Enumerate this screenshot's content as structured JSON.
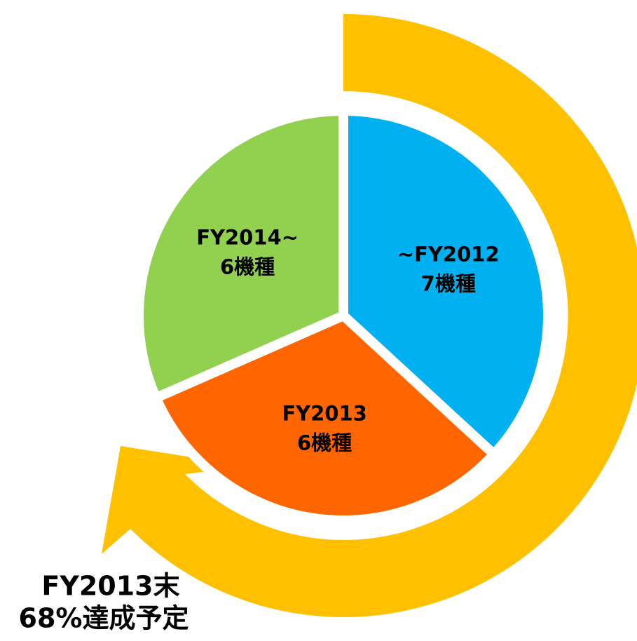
{
  "chart_data": {
    "type": "pie",
    "categories": [
      "~FY2012",
      "FY2013",
      "FY2014~"
    ],
    "values": [
      7,
      6,
      6
    ],
    "value_labels": [
      "7機種",
      "6機種",
      "6機種"
    ],
    "colors": [
      "#00b0f0",
      "#ff6600",
      "#92d050"
    ],
    "annotation": [
      "FY2013末",
      "68%達成予定"
    ],
    "annotation_color": "#ffc000"
  }
}
